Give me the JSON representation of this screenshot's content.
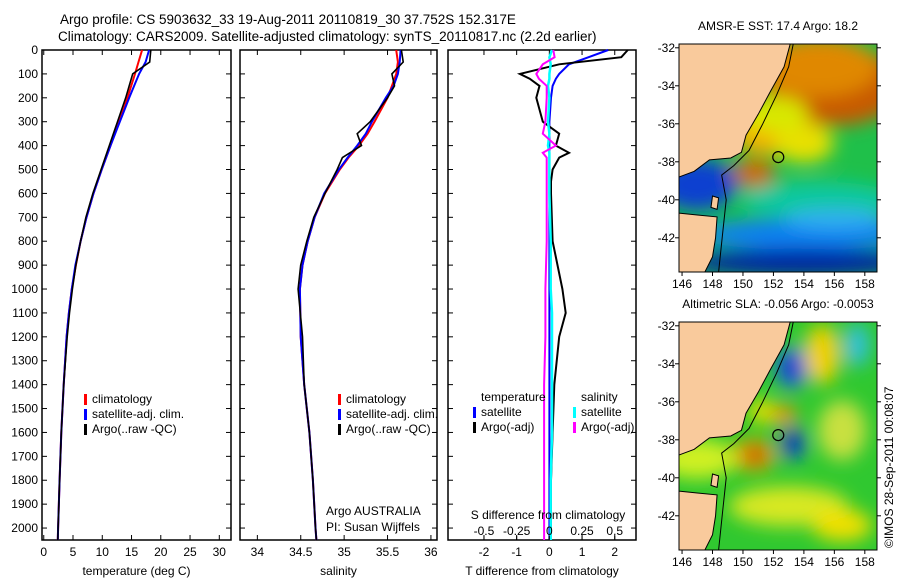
{
  "title_line1": "Argo profile: CS 5903632_33 19-Aug-2011 20110819_30 37.752S 152.317E",
  "title_line2": "Climatology: CARS2009. Satellite-adjusted climatology: synTS_20110817.nc (2.2d earlier)",
  "colors": {
    "clim": "#ff0000",
    "sat": "#0000ff",
    "argo": "#000000",
    "s_sat": "#00ffff",
    "s_argo": "#ff00ff",
    "land": "#f9ca9c"
  },
  "chart_data": [
    {
      "type": "line",
      "name": "temperature-profile",
      "xlabel": "temperature (deg C)",
      "xlim": [
        -0.3,
        32
      ],
      "xticks": [
        0,
        5,
        10,
        15,
        20,
        25,
        30
      ],
      "ylim": [
        0,
        2050
      ],
      "yticks": [
        0,
        100,
        200,
        300,
        400,
        500,
        600,
        700,
        800,
        900,
        1000,
        1100,
        1200,
        1300,
        1400,
        1500,
        1600,
        1700,
        1800,
        1900,
        2000
      ],
      "depth": [
        0,
        50,
        100,
        200,
        300,
        400,
        500,
        600,
        700,
        800,
        900,
        1000,
        1100,
        1200,
        1400,
        1600,
        1800,
        2000,
        2050
      ],
      "legend": [
        "climatology",
        "satellite-adj. clim.",
        "Argo(..raw -QC)"
      ],
      "series": [
        {
          "name": "climatology",
          "values": [
            16.8,
            16.2,
            15.6,
            14.3,
            12.9,
            11.4,
            9.9,
            8.5,
            7.3,
            6.3,
            5.5,
            4.8,
            4.3,
            3.9,
            3.4,
            3.0,
            2.7,
            2.45,
            2.4
          ]
        },
        {
          "name": "satellite-adj. clim.",
          "values": [
            18.0,
            17.4,
            16.3,
            14.6,
            13.0,
            11.4,
            9.9,
            8.5,
            7.3,
            6.3,
            5.4,
            4.8,
            4.3,
            3.9,
            3.4,
            3.0,
            2.7,
            2.45,
            2.4
          ]
        },
        {
          "name": "Argo(..raw -QC)",
          "values": [
            18.3,
            18.1,
            15.2,
            14.0,
            12.6,
            11.2,
            9.8,
            8.4,
            7.2,
            6.3,
            5.5,
            4.9,
            4.4,
            4.0,
            3.4,
            3.0,
            2.7,
            2.45,
            2.4
          ]
        }
      ]
    },
    {
      "type": "line",
      "name": "salinity-profile",
      "xlabel": "salinity",
      "xlim": [
        33.8,
        36.07
      ],
      "xticks": [
        34,
        34.5,
        35,
        35.5,
        36
      ],
      "depth": [
        0,
        50,
        100,
        150,
        200,
        300,
        350,
        400,
        450,
        500,
        600,
        700,
        800,
        900,
        1000,
        1200,
        1400,
        1600,
        1800,
        2000,
        2050
      ],
      "legend": [
        "climatology",
        "satellite-adj. clim.",
        "Argo(..raw -QC)"
      ],
      "annotation": [
        "Argo AUSTRALIA",
        "PI: Susan Wijffels"
      ],
      "series": [
        {
          "name": "climatology",
          "values": [
            35.6,
            35.62,
            35.6,
            35.55,
            35.5,
            35.35,
            35.27,
            35.17,
            35.05,
            34.95,
            34.78,
            34.66,
            34.58,
            34.52,
            34.49,
            34.5,
            34.54,
            34.6,
            34.64,
            34.67,
            34.68
          ]
        },
        {
          "name": "satellite-adj. clim.",
          "values": [
            35.65,
            35.64,
            35.62,
            35.57,
            35.48,
            35.32,
            35.25,
            35.15,
            35.04,
            34.94,
            34.77,
            34.66,
            34.58,
            34.52,
            34.49,
            34.5,
            34.54,
            34.6,
            34.64,
            34.67,
            34.68
          ]
        },
        {
          "name": "Argo(..raw -QC)",
          "values": [
            35.66,
            35.68,
            35.55,
            35.58,
            35.5,
            35.3,
            35.15,
            35.2,
            34.98,
            34.92,
            34.78,
            34.65,
            34.57,
            34.5,
            34.47,
            34.52,
            34.54,
            34.6,
            34.64,
            34.67,
            34.68
          ]
        }
      ]
    },
    {
      "type": "line",
      "name": "difference-profile",
      "xlabel": "T difference from climatology",
      "xlabel2": "S difference from climatology",
      "xlim": [
        -3.1,
        2.65
      ],
      "xticks": [
        -2,
        -1,
        0,
        1,
        2
      ],
      "xticks2": [
        -0.5,
        -0.25,
        0,
        0.25,
        0.5
      ],
      "depth": [
        0,
        30,
        60,
        100,
        120,
        150,
        200,
        300,
        350,
        400,
        430,
        450,
        500,
        550,
        600,
        800,
        1000,
        1100,
        1200,
        1400,
        1600,
        1800,
        2000,
        2050
      ],
      "legend_temperature": {
        "header": "temperature",
        "items": [
          "satellite",
          "Argo(-adj)"
        ]
      },
      "legend_salinity": {
        "header": "salinity",
        "items": [
          "satellite",
          "Argo(-adj)"
        ]
      },
      "series": [
        {
          "name": "T satellite",
          "values": [
            1.8,
            1.2,
            0.6,
            0.3,
            0.2,
            0.1,
            0.05,
            0,
            0,
            0,
            0,
            0,
            0,
            0,
            0,
            0,
            0,
            0,
            0,
            0,
            0,
            0,
            0,
            0
          ]
        },
        {
          "name": "T Argo(-adj)",
          "values": [
            2.4,
            2.2,
            0.3,
            -0.9,
            -0.6,
            -0.3,
            -0.4,
            -0.2,
            0.3,
            0.2,
            0.6,
            0.3,
            0.1,
            0.05,
            0.05,
            0.1,
            0.4,
            0.5,
            0.3,
            0.15,
            0.1,
            0.05,
            0.05,
            0
          ]
        },
        {
          "name": "S satellite",
          "values": [
            0.02,
            0,
            0.01,
            0,
            0,
            -0.01,
            0,
            -0.01,
            0,
            -0.01,
            0,
            0,
            0,
            0,
            0,
            0.01,
            0.01,
            0.02,
            0.02,
            0.02,
            0.02,
            0.01,
            0.01,
            0.01
          ]
        },
        {
          "name": "S Argo(-adj)",
          "values": [
            0.03,
            0.04,
            -0.05,
            -0.1,
            -0.08,
            -0.02,
            -0.02,
            -0.03,
            -0.05,
            0.05,
            -0.05,
            -0.02,
            -0.02,
            -0.02,
            -0.02,
            -0.02,
            -0.03,
            -0.03,
            -0.03,
            -0.04,
            -0.04,
            -0.04,
            -0.04,
            -0.04
          ]
        }
      ]
    },
    {
      "type": "heatmap",
      "name": "sst-map",
      "title": "AMSR-E SST: 17.4 Argo: 18.2",
      "xlim": [
        145.8,
        158.8
      ],
      "ylim": [
        -43.8,
        -31.8
      ],
      "xticks": [
        146,
        148,
        150,
        152,
        154,
        156,
        158
      ],
      "yticks": [
        -32,
        -34,
        -36,
        -38,
        -40,
        -42
      ],
      "marker": {
        "lon": 152.317,
        "lat": -37.752
      }
    },
    {
      "type": "heatmap",
      "name": "sla-map",
      "title": "Altimetric SLA: -0.056 Argo: -0.0053",
      "xlim": [
        145.8,
        158.8
      ],
      "ylim": [
        -43.8,
        -31.8
      ],
      "xticks": [
        146,
        148,
        150,
        152,
        154,
        156,
        158
      ],
      "yticks": [
        -32,
        -34,
        -36,
        -38,
        -40,
        -42
      ],
      "marker": {
        "lon": 152.317,
        "lat": -37.752
      }
    }
  ],
  "credit": "©IMOS 28-Sep-2011 00:08:07"
}
